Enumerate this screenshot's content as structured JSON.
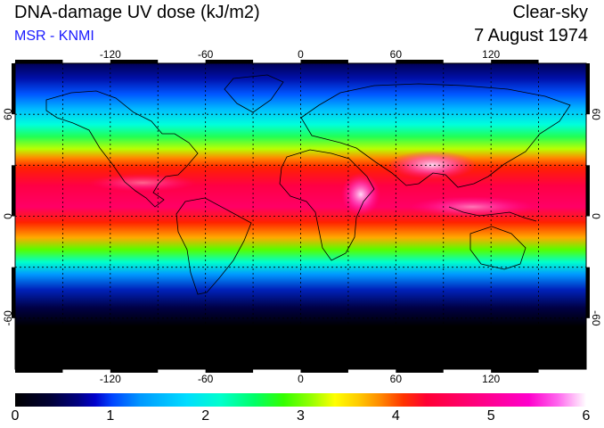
{
  "header": {
    "title": "DNA-damage UV dose (kJ/m2)",
    "subtitle": "MSR - KNMI",
    "mode": "Clear-sky",
    "date": "7 August 1974"
  },
  "map": {
    "lon_ticks": [
      "-120",
      "-60",
      "0",
      "60",
      "120"
    ],
    "lon_values": [
      -120,
      -60,
      0,
      60,
      120
    ],
    "lat_ticks": [
      "60",
      "0",
      "-60"
    ],
    "lat_values": [
      60,
      0,
      -60
    ],
    "grid_lons": [
      -150,
      -120,
      -90,
      -60,
      -30,
      0,
      30,
      60,
      90,
      120,
      150
    ],
    "grid_lats": [
      60,
      30,
      0,
      -30,
      -60
    ],
    "lon_range": [
      -180,
      180
    ],
    "lat_range": [
      -90,
      90
    ]
  },
  "colorbar": {
    "labels": [
      "0",
      "1",
      "2",
      "3",
      "4",
      "5",
      "6"
    ],
    "min": 0,
    "max": 6
  }
}
